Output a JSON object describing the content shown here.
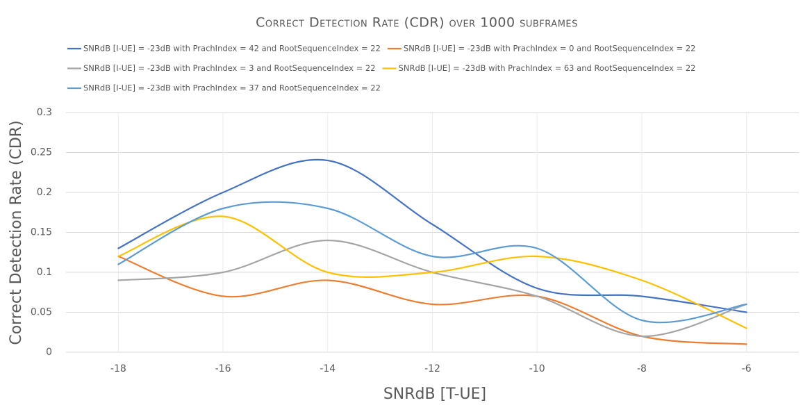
{
  "chart_data": {
    "type": "line",
    "title": "Correct Detection Rate (CDR) over 1000 subframes",
    "x_label": "SNRdB [T-UE]",
    "y_label": "Correct Detection Rate (CDR)",
    "x": [
      -18,
      -16,
      -14,
      -12,
      -10,
      -8,
      -6
    ],
    "series": [
      {
        "name": "SNRdB [I-UE]  = -23dB with PrachIndex = 42 and RootSequenceIndex = 22",
        "color": "#4472c4",
        "values": [
          0.13,
          0.2,
          0.24,
          0.16,
          0.08,
          0.07,
          0.05
        ]
      },
      {
        "name": "SNRdB [I-UE]  = -23dB with PrachIndex = 0 and RootSequenceIndex = 22",
        "color": "#ed7d31",
        "values": [
          0.12,
          0.07,
          0.09,
          0.06,
          0.07,
          0.02,
          0.01
        ]
      },
      {
        "name": "SNRdB [I-UE]  = -23dB with PrachIndex = 3 and RootSequenceIndex = 22",
        "color": "#a5a5a5",
        "values": [
          0.09,
          0.1,
          0.14,
          0.1,
          0.07,
          0.02,
          0.06
        ]
      },
      {
        "name": "SNRdB [I-UE]  = -23dB with PrachIndex = 63 and RootSequenceIndex = 22",
        "color": "#ffc000",
        "values": [
          0.12,
          0.17,
          0.1,
          0.1,
          0.12,
          0.09,
          0.03
        ]
      },
      {
        "name": "SNRdB [I-UE]  = -23dB with PrachIndex = 37 and RootSequenceIndex = 22",
        "color": "#5b9bd5",
        "values": [
          0.11,
          0.18,
          0.18,
          0.12,
          0.13,
          0.04,
          0.06
        ]
      }
    ],
    "xlim": [
      -19,
      -5
    ],
    "xticks": [
      -18,
      -16,
      -14,
      -12,
      -10,
      -8,
      -6
    ],
    "ylim": [
      0,
      0.3
    ],
    "yticks": [
      0,
      0.05,
      0.1,
      0.15,
      0.2,
      0.25,
      0.3
    ],
    "grid": true,
    "smooth": true,
    "legend": "top"
  }
}
